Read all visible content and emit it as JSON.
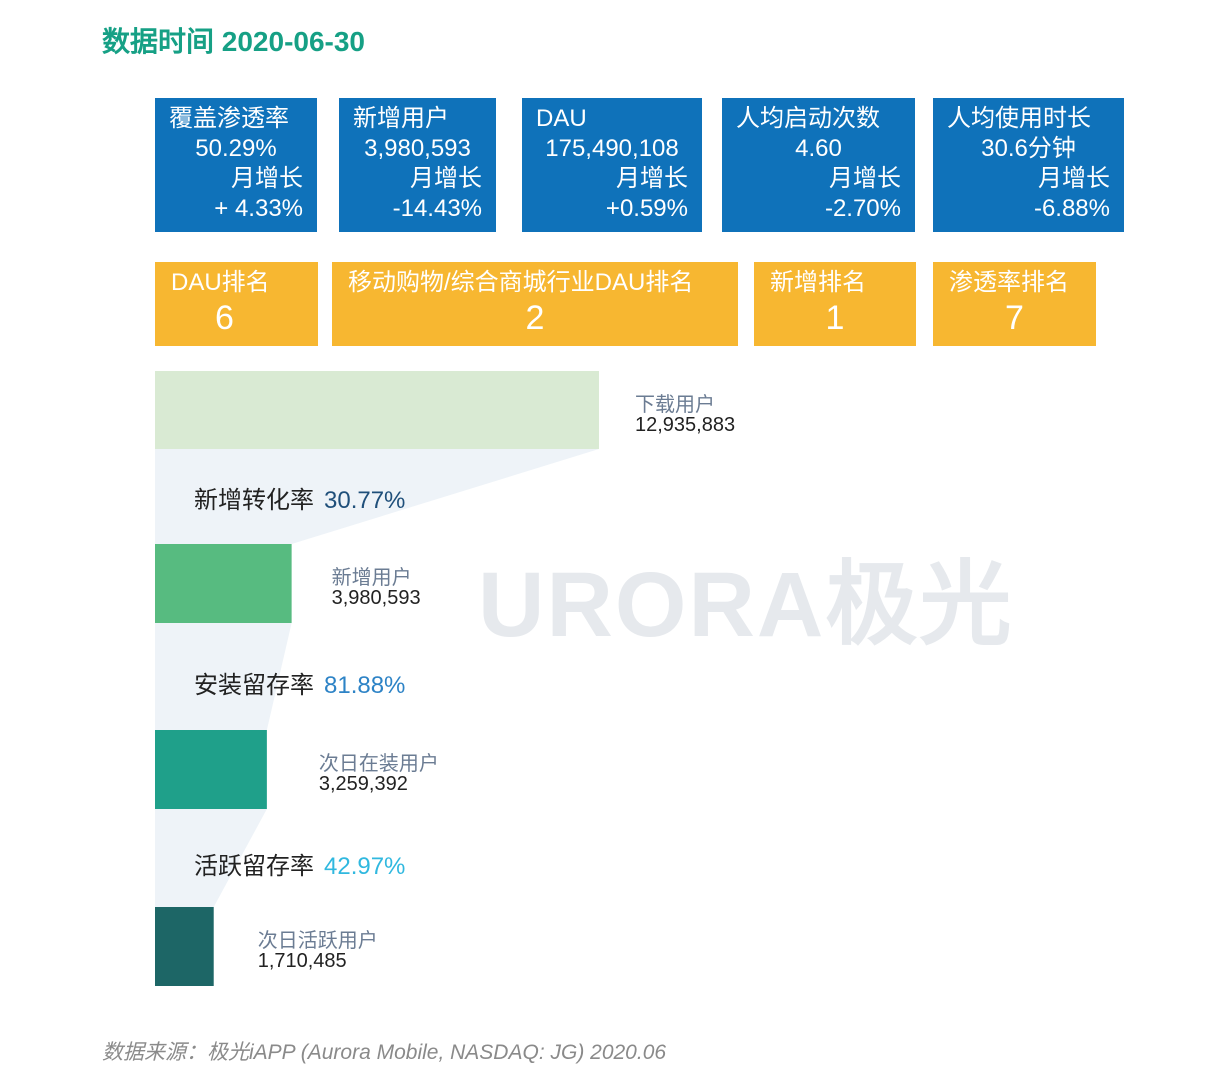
{
  "title": "数据时间 2020-06-30",
  "kpi_cards": [
    {
      "label": "覆盖渗透率",
      "value": "50.29%",
      "sub_label": "月增长",
      "sub_value": "+ 4.33%"
    },
    {
      "label": "新增用户",
      "value": "3,980,593",
      "sub_label": "月增长",
      "sub_value": "-14.43%"
    },
    {
      "label": "DAU",
      "value": "175,490,108",
      "sub_label": "月增长",
      "sub_value": "+0.59%"
    },
    {
      "label": "人均启动次数",
      "value": "4.60",
      "sub_label": "月增长",
      "sub_value": "-2.70%"
    },
    {
      "label": "人均使用时长",
      "value": "30.6分钟",
      "sub_label": "月增长",
      "sub_value": "-6.88%"
    }
  ],
  "rank_cards": [
    {
      "label": "DAU排名",
      "value": "6"
    },
    {
      "label": "移动购物/综合商城行业DAU排名",
      "value": "2"
    },
    {
      "label": "新增排名",
      "value": "1"
    },
    {
      "label": "渗透率排名",
      "value": "7"
    }
  ],
  "chart_data": {
    "type": "bar",
    "categories": [
      "下载用户",
      "新增用户",
      "次日在装用户",
      "次日活跃用户"
    ],
    "values": [
      12935883,
      3980593,
      3259392,
      1710485
    ],
    "value_labels": [
      "12,935,883",
      "3,980,593",
      "3,259,392",
      "1,710,485"
    ],
    "bar_colors": [
      "#d9ead3",
      "#57bb80",
      "#1fa08a",
      "#1d6666"
    ],
    "rates": [
      {
        "label": "新增转化率",
        "value": "30.77%",
        "color": "#1f4f7a"
      },
      {
        "label": "安装留存率",
        "value": "81.88%",
        "color": "#2d83c6"
      },
      {
        "label": "活跃留存率",
        "value": "42.97%",
        "color": "#30b8df"
      }
    ]
  },
  "watermark": "URORA极光",
  "source": "数据来源：极光iAPP (Aurora Mobile, NASDAQ: JG) 2020.06"
}
